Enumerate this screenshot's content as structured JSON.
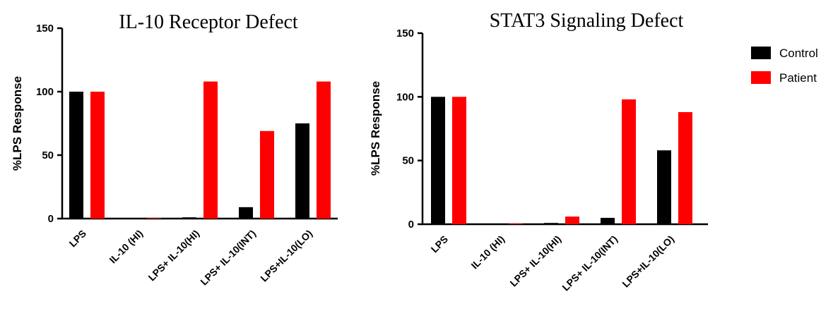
{
  "legend": {
    "entries": [
      {
        "label": "Control",
        "color": "#000000"
      },
      {
        "label": "Patient",
        "color": "#ff0000"
      }
    ]
  },
  "chart_data": [
    {
      "type": "bar",
      "title": "IL-10 Receptor Defect",
      "ylabel": "%LPS Response",
      "xlabel": "",
      "ylim": [
        0,
        150
      ],
      "yticks": [
        0,
        50,
        100,
        150
      ],
      "categories": [
        "LPS",
        "IL-10 (HI)",
        "LPS+ IL-10(HI)",
        "LPS+ IL-10(INT)",
        "LPS+IL-10(LO)"
      ],
      "series": [
        {
          "name": "Control",
          "color": "#000000",
          "values": [
            100,
            0,
            1,
            9,
            75
          ]
        },
        {
          "name": "Patient",
          "color": "#ff0000",
          "values": [
            100,
            0,
            108,
            69,
            108
          ]
        }
      ]
    },
    {
      "type": "bar",
      "title": "STAT3 Signaling Defect",
      "ylabel": "%LPS Response",
      "xlabel": "",
      "ylim": [
        0,
        150
      ],
      "yticks": [
        0,
        50,
        100,
        150
      ],
      "categories": [
        "LPS",
        "IL-10 (HI)",
        "LPS+ IL-10(HI)",
        "LPS+ IL-10(INT)",
        "LPS+IL-10(LO)"
      ],
      "series": [
        {
          "name": "Control",
          "color": "#000000",
          "values": [
            100,
            0,
            1,
            5,
            58
          ]
        },
        {
          "name": "Patient",
          "color": "#ff0000",
          "values": [
            100,
            0,
            6,
            98,
            88
          ]
        }
      ]
    }
  ]
}
